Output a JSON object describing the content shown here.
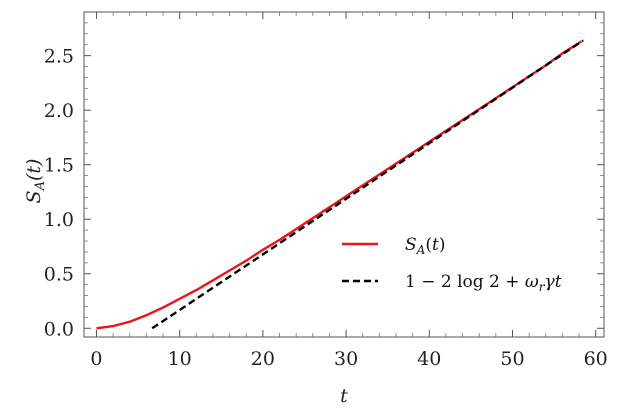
{
  "chart_data": {
    "type": "line",
    "xlabel": "t",
    "ylabel": "S_A(t)",
    "xlim": [
      -1.5,
      61
    ],
    "ylim": [
      -0.08,
      2.9
    ],
    "x_ticks": [
      0,
      10,
      20,
      30,
      40,
      50,
      60
    ],
    "y_ticks": [
      0.0,
      0.5,
      1.0,
      1.5,
      2.0,
      2.5
    ],
    "x_tick_labels": [
      "0",
      "10",
      "20",
      "30",
      "40",
      "50",
      "60"
    ],
    "y_tick_labels": [
      "0.0",
      "0.5",
      "1.0",
      "1.5",
      "2.0",
      "2.5"
    ],
    "grid": false,
    "legend_position": "center-right",
    "series": [
      {
        "name": "S_A(t)",
        "color": "#e8161b",
        "style": "solid",
        "x": [
          0,
          2,
          4,
          6,
          8,
          10,
          12,
          14,
          16,
          18,
          20,
          22,
          24,
          26,
          28,
          30,
          32,
          34,
          36,
          38,
          40,
          42,
          44,
          46,
          48,
          50,
          52,
          54,
          56,
          58.3
        ],
        "y": [
          0.0,
          0.02,
          0.06,
          0.12,
          0.19,
          0.27,
          0.35,
          0.44,
          0.53,
          0.62,
          0.72,
          0.81,
          0.91,
          1.01,
          1.11,
          1.21,
          1.31,
          1.41,
          1.51,
          1.61,
          1.71,
          1.81,
          1.91,
          2.01,
          2.11,
          2.21,
          2.31,
          2.41,
          2.52,
          2.63
        ]
      },
      {
        "name": "1 − 2 log 2 + ω_r γ t",
        "color": "#000000",
        "style": "dashed",
        "x": [
          6.7,
          58.5
        ],
        "y": [
          0.0,
          2.64
        ]
      }
    ]
  }
}
